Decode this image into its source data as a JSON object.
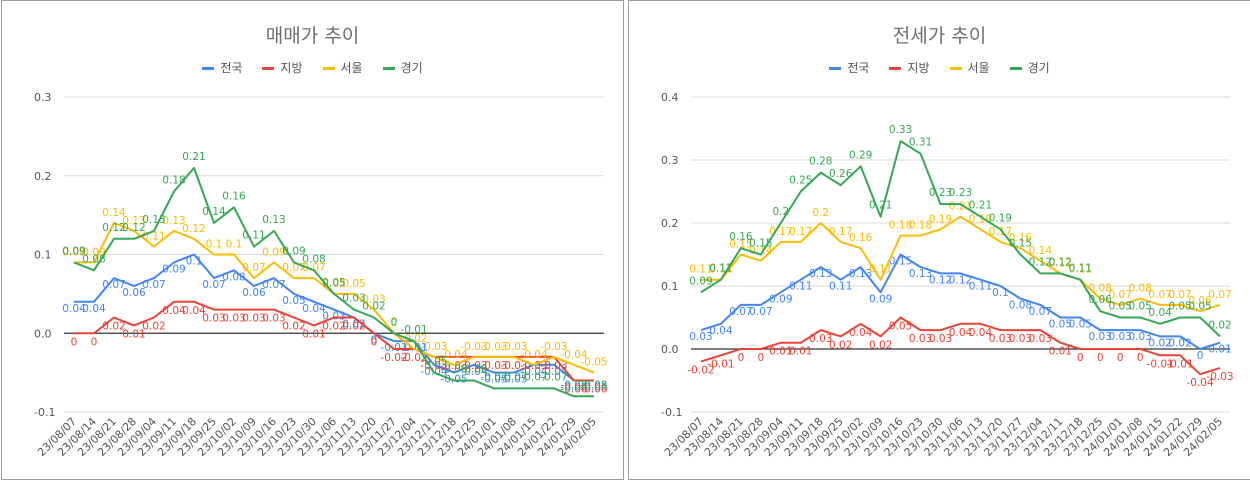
{
  "colors": {
    "전국": "#4285f4",
    "지방": "#ea4335",
    "서울": "#fbbc04",
    "경기": "#34a853"
  },
  "chart_data": [
    {
      "type": "line",
      "title": "매매가 추이",
      "categories": [
        "23/08/07",
        "23/08/14",
        "23/08/21",
        "23/08/28",
        "23/09/04",
        "23/09/11",
        "23/09/18",
        "23/09/25",
        "23/10/02",
        "23/10/09",
        "23/10/16",
        "23/10/23",
        "23/10/30",
        "23/11/06",
        "23/11/13",
        "23/11/20",
        "23/11/27",
        "23/12/04",
        "23/12/11",
        "23/12/18",
        "23/12/25",
        "24/01/01",
        "24/01/08",
        "24/01/15",
        "24/01/22",
        "24/01/29",
        "24/02/05"
      ],
      "tick_labels": [
        "23/08/07",
        "23/08/14",
        "23/08/21",
        "23/08/28",
        "23/09/04",
        "23/09/11",
        "23/09/18",
        "23/09/25",
        "23/10/02",
        "23/10/09",
        "23/10/16",
        "23/10/23",
        "23/10/30",
        "23/11/06",
        "23/11/13",
        "23/11/20",
        "23/11/27",
        "23/12/04",
        "23/12/11",
        "23/12/18",
        "23/12/25",
        "24/01/01",
        "24/01/08",
        "24/01/15",
        "24/01/22",
        "24/01/29",
        "24/02/05"
      ],
      "ylim": [
        -0.1,
        0.3
      ],
      "yticks": [
        "-0.1",
        "0.0",
        "0.1",
        "0.2",
        "0.3"
      ],
      "series": [
        {
          "name": "전국",
          "values": [
            0.04,
            0.04,
            0.07,
            0.06,
            0.07,
            0.09,
            0.1,
            0.07,
            0.08,
            0.06,
            0.07,
            0.05,
            0.04,
            0.03,
            0.02,
            0.0,
            -0.01,
            -0.01,
            -0.04,
            -0.05,
            -0.04,
            -0.05,
            -0.05,
            -0.04,
            -0.04,
            -0.06,
            -0.06
          ]
        },
        {
          "name": "지방",
          "values": [
            0,
            0,
            0.02,
            0.01,
            0.02,
            0.04,
            0.04,
            0.03,
            0.03,
            0.03,
            0.03,
            0.02,
            0.01,
            0.02,
            0.02,
            0,
            -0.02,
            -0.02,
            -0.03,
            -0.03,
            -0.03,
            -0.03,
            -0.03,
            -0.03,
            -0.03,
            -0.06,
            -0.06
          ]
        },
        {
          "name": "서울",
          "values": [
            0.09,
            0.09,
            0.14,
            0.13,
            0.11,
            0.13,
            0.12,
            0.1,
            0.1,
            0.07,
            0.09,
            0.07,
            0.07,
            0.05,
            0.05,
            0.03,
            0.0,
            -0.02,
            -0.03,
            -0.04,
            -0.03,
            -0.03,
            -0.03,
            -0.04,
            -0.03,
            -0.04,
            -0.05
          ]
        },
        {
          "name": "경기",
          "values": [
            0.09,
            0.08,
            0.12,
            0.12,
            0.13,
            0.18,
            0.21,
            0.14,
            0.16,
            0.11,
            0.13,
            0.09,
            0.08,
            0.05,
            0.03,
            0.02,
            0,
            -0.01,
            -0.05,
            -0.06,
            -0.06,
            -0.07,
            -0.07,
            -0.07,
            -0.07,
            -0.08,
            -0.08
          ]
        }
      ]
    },
    {
      "type": "line",
      "title": "전세가 추이",
      "categories": [
        "23/08/07",
        "23/08/14",
        "23/08/21",
        "23/08/28",
        "23/09/04",
        "23/09/11",
        "23/09/18",
        "23/09/25",
        "23/10/02",
        "23/10/09",
        "23/10/16",
        "23/10/23",
        "23/10/30",
        "23/11/06",
        "23/11/13",
        "23/11/20",
        "23/11/27",
        "23/12/04",
        "23/12/11",
        "23/12/18",
        "23/12/25",
        "24/01/01",
        "24/01/08",
        "24/01/15",
        "24/01/22",
        "24/01/29",
        "24/02/05"
      ],
      "tick_labels": [
        "23/08/07",
        "23/08/14",
        "23/08/21",
        "23/08/28",
        "23/09/04",
        "23/09/11",
        "23/09/18",
        "23/09/25",
        "23/10/02",
        "23/10/09",
        "23/10/16",
        "23/10/23",
        "23/10/30",
        "23/11/06",
        "23/11/13",
        "23/11/20",
        "23/11/27",
        "23/12/04",
        "23/12/11",
        "23/12/18",
        "23/12/25",
        "24/01/01",
        "24/01/08",
        "24/01/15",
        "24/01/22",
        "24/01/29",
        "24/02/05"
      ],
      "ylim": [
        -0.1,
        0.4
      ],
      "yticks": [
        "-0.1",
        "0.0",
        "0.1",
        "0.2",
        "0.3",
        "0.4"
      ],
      "series": [
        {
          "name": "전국",
          "values": [
            0.03,
            0.04,
            0.07,
            0.07,
            0.09,
            0.11,
            0.13,
            0.11,
            0.13,
            0.09,
            0.15,
            0.13,
            0.12,
            0.12,
            0.11,
            0.1,
            0.08,
            0.07,
            0.05,
            0.05,
            0.03,
            0.03,
            0.03,
            0.02,
            0.02,
            0.0,
            0.01
          ]
        },
        {
          "name": "지방",
          "values": [
            -0.02,
            -0.01,
            0,
            0,
            0.01,
            0.01,
            0.03,
            0.02,
            0.04,
            0.02,
            0.05,
            0.03,
            0.03,
            0.04,
            0.04,
            0.03,
            0.03,
            0.03,
            0.01,
            0,
            0,
            0,
            0,
            -0.01,
            -0.01,
            -0.04,
            -0.03
          ]
        },
        {
          "name": "서울",
          "values": [
            0.11,
            0.11,
            0.15,
            0.14,
            0.17,
            0.17,
            0.2,
            0.17,
            0.16,
            0.11,
            0.18,
            0.18,
            0.19,
            0.21,
            0.19,
            0.17,
            0.16,
            0.14,
            0.12,
            0.11,
            0.08,
            0.07,
            0.08,
            0.07,
            0.07,
            0.06,
            0.07
          ]
        },
        {
          "name": "경기",
          "values": [
            0.09,
            0.11,
            0.16,
            0.15,
            0.2,
            0.25,
            0.28,
            0.26,
            0.29,
            0.21,
            0.33,
            0.31,
            0.23,
            0.23,
            0.21,
            0.19,
            0.15,
            0.12,
            0.12,
            0.11,
            0.06,
            0.05,
            0.05,
            0.04,
            0.05,
            0.05,
            0.02
          ]
        }
      ]
    }
  ]
}
